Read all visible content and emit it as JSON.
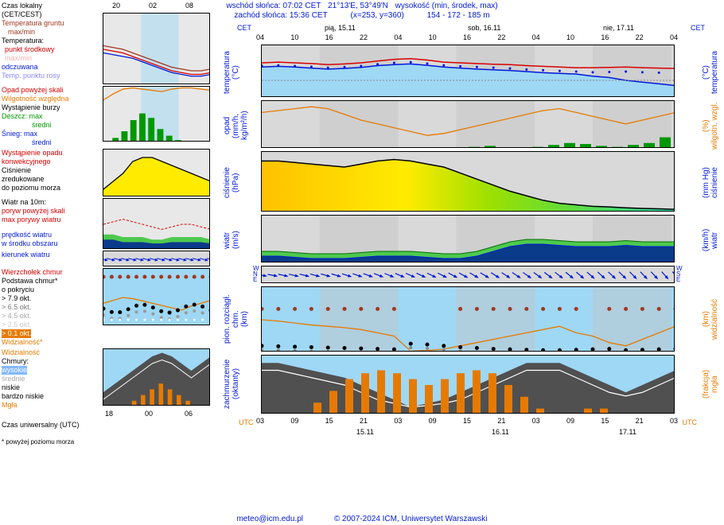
{
  "header": {
    "sunrise_label": "wschód słońca: 07:02 CET",
    "sunset_label": "zachód słońca: 15:36 CET",
    "coords": "21°13'E, 53°49'N",
    "grid": "(x=253, y=360)",
    "elev_label": "wysokość (min, środek, max)",
    "elev_values": "154 - 172 - 185 m",
    "day1": "pią, 15.11",
    "day2": "sob, 16.11",
    "day3": "nie, 17.11",
    "tz_left": "CET",
    "tz_right": "CET",
    "time_ticks": [
      "04",
      "10",
      "16",
      "22",
      "04",
      "10",
      "16",
      "22",
      "04",
      "10",
      "16",
      "22",
      "04"
    ]
  },
  "legend_left": {
    "czas": "Czas lokalny",
    "czas2": "(CET/CEST)",
    "tgruntu": "Temperatura gruntu",
    "maxmin": "max/min",
    "temp": "Temperatura:",
    "punkt": "punkt środkowy",
    "maxmin2": "max/min",
    "odcz": "odczuwana",
    "rosa": "Temp. punktu rosy",
    "opad": "Opad powyżej skali",
    "wilg": "Wilgotność względna",
    "burza": "Wystąpienie burzy",
    "deszcz": "Deszcz:",
    "max": "max",
    "sredni": "średni",
    "snieg": "Śnieg:",
    "konw": "Wystąpienie opadu",
    "konw2": "konwekcyjnego",
    "cis": "Ciśnienie",
    "cis2": "zredukowane",
    "cis3": "do poziomu morza",
    "wiatr": "Wiatr na 10m:",
    "poryw": "poryw powyżej skali",
    "maxpor": "max porywy wiatru",
    "predk": "prędkość wiatru",
    "predk2": "w środku obszaru",
    "kier": "kierunek wiatru",
    "wierzch": "Wierzchołek chmur",
    "podst": "Podstawa chmur*",
    "pokr": "o pokryciu",
    "okt79": "> 7.9 okt.",
    "okt65": "> 6.5 okt.",
    "okt45": "> 4.5 okt.",
    "okt25": "> 2.5 okt.",
    "okt01": "> 0.1 okt.",
    "widz": "Widzialność*",
    "widz2": "Widzialność",
    "chmury": "Chmury:",
    "wys": "wysokie",
    "sred": "średnie",
    "nisk": "niskie",
    "bnisk": "bardzo niskie",
    "mgla": "Mgła",
    "utc": "Czas uniwersalny (UTC)",
    "note": "* powyżej poziomu morza"
  },
  "right_labels": {
    "p1l": "temperatura",
    "p1l2": "(°C)",
    "p1r": "temperatura",
    "p1r2": "(°C)",
    "p2l": "opad",
    "p2l2": "(mm/h, kg/m²/h)",
    "p2r": "wilgotn. wzgl.",
    "p2r2": "(%)",
    "p3l": "ciśnienie",
    "p3l2": "(hPa)",
    "p3r": "ciśnienie",
    "p3r2": "(mm Hg)",
    "p4l": "wiatr",
    "p4l2": "(m/s)",
    "p4r": "(km/h)",
    "p4r2": "wiatr",
    "p5l": "pion. rozciągł. chm.",
    "p5l2": "(km)",
    "p5r": "widzialność",
    "p5r2": "(km)",
    "p6l": "zachmurzenie",
    "p6l2": "(oktanty)",
    "p6r": "mgła",
    "p6r2": "(frakcja)",
    "utc_l": "UTC",
    "utc_r": "UTC",
    "bot_ticks": [
      "03",
      "09",
      "15",
      "21",
      "03",
      "09",
      "15",
      "21",
      "03",
      "09",
      "15",
      "21",
      "03"
    ],
    "bot_days": [
      "15.11",
      "16.11",
      "17.11"
    ]
  },
  "colors": {
    "blue": "#0018d8",
    "red": "#d80000",
    "orange": "#e67a00",
    "green": "#009800",
    "grey": "#888",
    "dkgrey": "#555",
    "skyblue": "#9ed8f5",
    "night": "#d0d0d0",
    "yellow": "#ffeb00",
    "lime": "#5fdc3c",
    "teal": "#29d8b0",
    "darkblue": "#001890",
    "brick": "#a03820",
    "black": "#000"
  },
  "panels": {
    "temp": {
      "ylim": [
        -5,
        10
      ],
      "rylim": [
        -5,
        10
      ],
      "yticks": [
        10,
        5,
        0,
        -5
      ],
      "red_line": [
        5,
        5.2,
        5,
        4.8,
        4.5,
        4.7,
        5,
        5.5,
        6,
        6.2,
        5.8,
        5.2,
        5,
        4.8,
        4.6,
        4.5,
        4.2,
        4,
        3.8,
        3.6,
        3.6,
        3.7,
        3.8,
        3.6,
        3.5,
        3.4
      ],
      "dblue_line": [
        3.8,
        4,
        3.8,
        3.5,
        3.2,
        3.4,
        3.7,
        4.2,
        4.5,
        4.7,
        4.3,
        3.8,
        3.5,
        3.2,
        3,
        2.8,
        2.5,
        2.2,
        2,
        1.8,
        1.2,
        0.8,
        0,
        -0.5,
        -1,
        -1.5
      ],
      "dots": [
        4.2,
        4.3,
        4.1,
        3.9,
        3.6,
        3.8,
        4.1,
        4.6,
        5,
        5.2,
        4.8,
        4.3,
        4,
        3.8,
        3.6,
        3.4,
        3.1,
        2.9,
        2.7,
        2.5,
        2.3,
        2.4,
        2.5,
        2.3,
        2.2,
        2.1
      ]
    },
    "precip": {
      "ylim": [
        0,
        5
      ],
      "yticks": [
        5,
        4,
        3,
        2,
        1
      ],
      "rylim": [
        75,
        100
      ],
      "ryticks": [
        100,
        95,
        90,
        85,
        80,
        75
      ],
      "orange_line": [
        94,
        95,
        96,
        97,
        96,
        93,
        90,
        88,
        86,
        84,
        82,
        83,
        85,
        87,
        89,
        91,
        93,
        95,
        96,
        94,
        92,
        90,
        88,
        90,
        92,
        94
      ],
      "green_bars": [
        0,
        0,
        0,
        0,
        0,
        0,
        0,
        0,
        0,
        0,
        0,
        0,
        0,
        0.2,
        0.3,
        0.1,
        0,
        0.2,
        0.4,
        0.6,
        0.5,
        0.3,
        0.2,
        0.4,
        0.6,
        1.2
      ]
    },
    "press": {
      "ylim": [
        1000,
        1020
      ],
      "yticks": [
        1020,
        1015,
        1010,
        1005,
        1000
      ],
      "rylim": [
        750,
        765
      ],
      "ryticks": [
        765,
        761,
        758,
        754,
        750
      ],
      "black_line": [
        1017,
        1017,
        1016.5,
        1016,
        1015.5,
        1015,
        1016,
        1017,
        1017.5,
        1017,
        1016,
        1015,
        1013,
        1011,
        1009,
        1007,
        1005.5,
        1004,
        1003,
        1002.5,
        1002,
        1001.8,
        1001.5,
        1001.3,
        1001.2,
        1001
      ],
      "fill_stops": [
        0,
        0.35,
        0.55,
        0.75,
        1
      ],
      "fill_colors": [
        "#ffc200",
        "#ffeb00",
        "#9de000",
        "#5fdc3c",
        "#29d8b0"
      ]
    },
    "wind": {
      "ylim": [
        0,
        20
      ],
      "yticks": [
        20,
        15,
        10,
        5
      ],
      "rylim": [
        0,
        72
      ],
      "ryticks": [
        72,
        54,
        36,
        18
      ],
      "dk": [
        3,
        3,
        2.5,
        2,
        2,
        2,
        2.5,
        3,
        3,
        3,
        2.5,
        2,
        2,
        3,
        5,
        7,
        8,
        8,
        7.5,
        7,
        7,
        7,
        7.5,
        7,
        7,
        7
      ],
      "lt": [
        5,
        5,
        4.5,
        4,
        4,
        4,
        4.5,
        5,
        5,
        5,
        4.5,
        4,
        4,
        5,
        7,
        9,
        10,
        10,
        9.5,
        9,
        9,
        9,
        9.5,
        9,
        9,
        9
      ]
    },
    "clouds": {
      "ylim": [
        0,
        15
      ],
      "yticks": [
        "15.0",
        "7.0",
        "2.0",
        "0.0"
      ],
      "rylim": [
        0,
        100
      ],
      "ryticks": [
        100,
        10,
        1,
        0
      ],
      "orange": [
        50,
        48,
        45,
        42,
        40,
        38,
        35,
        30,
        25,
        2,
        3,
        5,
        10,
        15,
        20,
        25,
        30,
        35,
        40,
        30,
        25,
        15,
        10,
        20,
        30,
        40
      ],
      "black_dots": [
        1.5,
        1.4,
        1.3,
        1.2,
        1.1,
        1.0,
        0.9,
        0.8,
        0.7,
        2.0,
        1.8,
        1.5,
        1.2,
        1.0,
        0.8,
        0.7,
        0.6,
        0.5,
        0.5,
        0.6,
        0.7,
        0.8,
        0.5,
        0.6,
        0.7,
        0.8
      ],
      "brick_dots": [
        10,
        10,
        10,
        10,
        10,
        10,
        10,
        10,
        10,
        null,
        null,
        null,
        10,
        10,
        10,
        10,
        10,
        10,
        10,
        10,
        null,
        10,
        10,
        10,
        10,
        10
      ]
    },
    "cover": {
      "ylim": [
        0,
        8
      ],
      "yticks": [
        8,
        6,
        4,
        2
      ],
      "rylim": [
        0,
        1
      ],
      "ryticks": [
        "1.00",
        "0.75",
        "0.50",
        "0.25"
      ],
      "grey_area": [
        7,
        7,
        6.5,
        6,
        5.5,
        5,
        4,
        3,
        2,
        1,
        1.5,
        2,
        3,
        4,
        5,
        6,
        7,
        7,
        7,
        6,
        5,
        4,
        3,
        4,
        5,
        6
      ],
      "white_line": [
        6,
        6,
        5.5,
        5,
        4.5,
        4,
        3,
        2,
        1.5,
        1,
        1.2,
        1.5,
        2,
        3,
        4,
        5,
        6,
        6,
        6,
        5,
        4,
        3,
        2.5,
        3,
        4,
        5
      ],
      "gold_bars": [
        0,
        0,
        0,
        0.2,
        0.4,
        0.6,
        0.7,
        0.75,
        0.7,
        0.6,
        0.5,
        0.6,
        0.7,
        0.75,
        0.7,
        0.5,
        0.3,
        0.1,
        0,
        0,
        0.1,
        0.1,
        0,
        0,
        0,
        0
      ]
    }
  },
  "footer": {
    "email": "meteo@icm.edu.pl",
    "copy": "© 2007-2024 ICM, Uniwersytet Warszawski"
  }
}
